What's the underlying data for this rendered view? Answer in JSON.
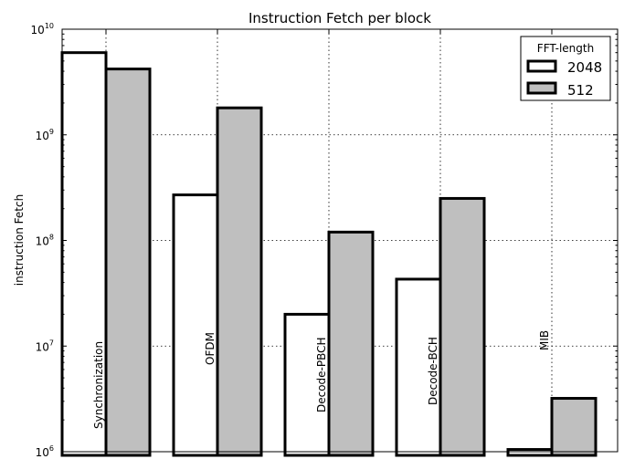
{
  "chart_data": {
    "type": "bar",
    "title": "Instruction Fetch per block",
    "ylabel": "instruction Fetch",
    "xlabel": "",
    "yscale": "log",
    "ylim": [
      1000000,
      10000000000
    ],
    "yticks": [
      {
        "base": "10",
        "exp": "6",
        "value": 1000000
      },
      {
        "base": "10",
        "exp": "7",
        "value": 10000000
      },
      {
        "base": "10",
        "exp": "8",
        "value": 100000000
      },
      {
        "base": "10",
        "exp": "9",
        "value": 1000000000
      },
      {
        "base": "10",
        "exp": "10",
        "value": 10000000000
      }
    ],
    "grid": true,
    "categories": [
      "Synchronization",
      "OFDM",
      "Decode-PBCH",
      "Decode-BCH",
      "MIB"
    ],
    "legend": {
      "title": "FFT-length",
      "placement": "top-right"
    },
    "series": [
      {
        "name": "2048",
        "color": "#ffffff",
        "values": [
          6000000000,
          270000000,
          20000000,
          43000000,
          1050000
        ]
      },
      {
        "name": "512",
        "color": "#bfbfbf",
        "values": [
          4200000000,
          1800000000,
          120000000,
          250000000,
          3200000
        ]
      }
    ]
  }
}
